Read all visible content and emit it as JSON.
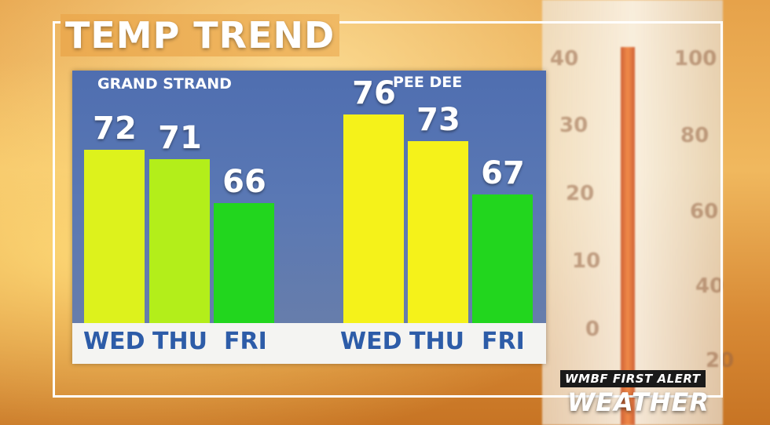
{
  "title": "TEMP TREND",
  "chart_data": [
    {
      "type": "bar",
      "title": "GRAND STRAND",
      "categories": [
        "WED",
        "THU",
        "FRI"
      ],
      "values": [
        72,
        71,
        66
      ],
      "colors": [
        "#ddf21c",
        "#b3ee1a",
        "#22d61e"
      ]
    },
    {
      "type": "bar",
      "title": "PEE DEE",
      "categories": [
        "WED",
        "THU",
        "FRI"
      ],
      "values": [
        76,
        73,
        67
      ],
      "colors": [
        "#f5f21a",
        "#f5f21a",
        "#22d61e"
      ]
    }
  ],
  "background_ticks": {
    "left": [
      "40",
      "30",
      "20",
      "10",
      "0"
    ],
    "right": [
      "100",
      "80",
      "60",
      "40",
      "20"
    ]
  },
  "logo": {
    "line1": "WMBF FIRST ALERT",
    "line2": "WEATHER"
  }
}
